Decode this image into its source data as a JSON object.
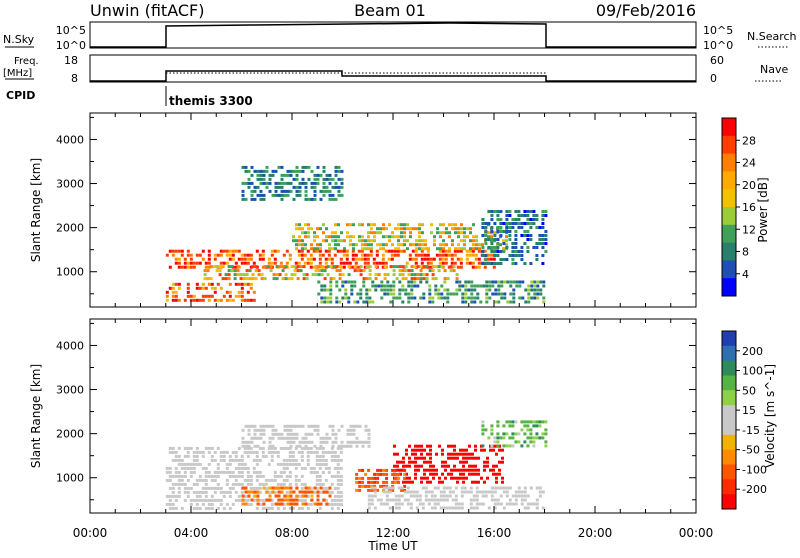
{
  "header": {
    "site_title": "Unwin (fitACF)",
    "beam_label": "Beam 01",
    "date_label": "09/Feb/2016"
  },
  "left_labels": {
    "nsky": "N.Sky",
    "freq": "Freq.",
    "freq_unit": "[MHz]",
    "cpid": "CPID"
  },
  "right_labels": {
    "nsearch": "N.Search",
    "nave": "Nave"
  },
  "mini_ticks": {
    "sky_top": "10^5",
    "sky_bottom": "10^0",
    "freq_top": "18",
    "freq_bottom": "8",
    "nave_top": "60",
    "nave_bottom": "0"
  },
  "cpid_program": "themis 3300",
  "colorbars": {
    "power": {
      "label": "Power [dB]",
      "ticks": [
        "28",
        "24",
        "20",
        "16",
        "12",
        "8",
        "4"
      ],
      "colors": [
        "#ff0000",
        "#ff3d00",
        "#ff7f00",
        "#ffaa00",
        "#f2c200",
        "#9ccc3a",
        "#3fa05a",
        "#26806a",
        "#1f4fb5",
        "#0000ff"
      ]
    },
    "velocity": {
      "label": "Velocity [m s^-1]",
      "ticks": [
        "200",
        "100",
        "50",
        "15",
        "-15",
        "-50",
        "-100",
        "-200"
      ],
      "colors": [
        "#1f3fb0",
        "#2f6fb0",
        "#2e8a5a",
        "#55b341",
        "#8fd04a",
        "#c8c8c8",
        "#c8c8c8",
        "#f2b200",
        "#ff8a00",
        "#ff5500",
        "#ff2a00",
        "#ff0000"
      ]
    }
  },
  "chart_data": [
    {
      "type": "heatmap",
      "panel": "power",
      "ylabel": "Slant Range [km]",
      "xlabel": "",
      "xlim": [
        "00:00",
        "24:00"
      ],
      "ylim": [
        200,
        4600
      ],
      "yticks": [
        1000,
        2000,
        3000,
        4000
      ],
      "xticks": [
        "00:00",
        "04:00",
        "08:00",
        "12:00",
        "16:00",
        "20:00",
        "00:00"
      ],
      "data_window_hours": [
        3.0,
        18.1
      ],
      "regions": [
        {
          "t0": 3.0,
          "t1": 16.0,
          "r0": 1100,
          "r1": 1500,
          "value": 26
        },
        {
          "t0": 3.0,
          "t1": 6.5,
          "r0": 300,
          "r1": 750,
          "value": 25
        },
        {
          "t0": 4.5,
          "t1": 14.5,
          "r0": 800,
          "r1": 1150,
          "value": 20
        },
        {
          "t0": 8.0,
          "t1": 16.5,
          "r0": 1500,
          "r1": 2100,
          "value": 18
        },
        {
          "t0": 9.0,
          "t1": 18.0,
          "r0": 300,
          "r1": 800,
          "value": 12
        },
        {
          "t0": 6.0,
          "t1": 10.0,
          "r0": 2600,
          "r1": 3400,
          "value": 10
        },
        {
          "t0": 15.5,
          "t1": 18.0,
          "r0": 1200,
          "r1": 2400,
          "value": 9
        }
      ]
    },
    {
      "type": "heatmap",
      "panel": "velocity",
      "ylabel": "Slant Range [km]",
      "xlabel": "Time UT",
      "xlim": [
        "00:00",
        "24:00"
      ],
      "ylim": [
        200,
        4600
      ],
      "yticks": [
        1000,
        2000,
        3000,
        4000
      ],
      "xticks": [
        "00:00",
        "04:00",
        "08:00",
        "12:00",
        "16:00",
        "20:00",
        "00:00"
      ],
      "data_window_hours": [
        3.0,
        18.1
      ],
      "regions": [
        {
          "t0": 3.0,
          "t1": 10.0,
          "r0": 300,
          "r1": 1700,
          "value": 0
        },
        {
          "t0": 6.0,
          "t1": 11.0,
          "r0": 1700,
          "r1": 2200,
          "value": 0
        },
        {
          "t0": 12.0,
          "t1": 16.3,
          "r0": 850,
          "r1": 1750,
          "value": -220
        },
        {
          "t0": 10.5,
          "t1": 12.5,
          "r0": 700,
          "r1": 1200,
          "value": -80
        },
        {
          "t0": 6.0,
          "t1": 9.5,
          "r0": 400,
          "r1": 800,
          "value": -60
        },
        {
          "t0": 11.0,
          "t1": 18.0,
          "r0": 300,
          "r1": 800,
          "value": 0
        },
        {
          "t0": 15.5,
          "t1": 18.0,
          "r0": 1700,
          "r1": 2300,
          "value": 40
        }
      ]
    }
  ]
}
